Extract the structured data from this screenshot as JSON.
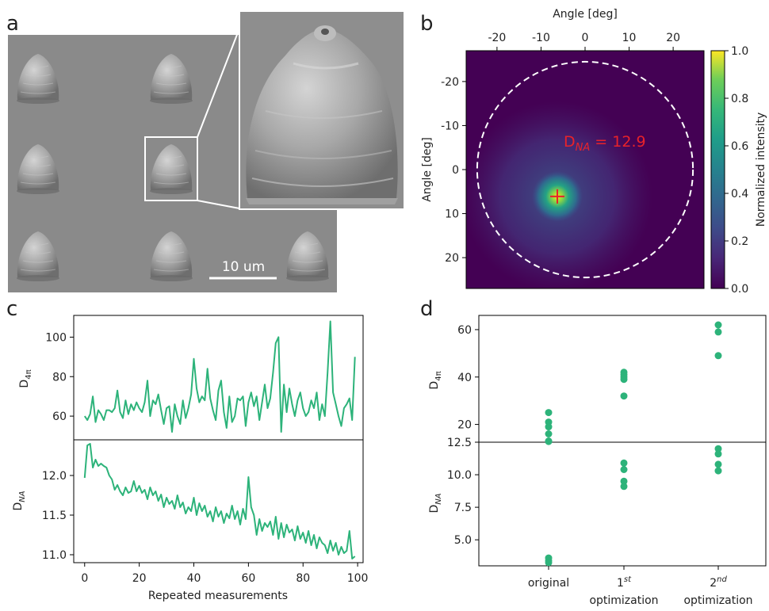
{
  "panels": {
    "a": "a",
    "b": "b",
    "c": "c",
    "d": "d"
  },
  "sem": {
    "scale_label": "10 um"
  },
  "colors": {
    "series": "#2db37a",
    "marker": "#e8222a",
    "annotation": "#e8222a",
    "circle": "#ffffff"
  },
  "chart_data": [
    {
      "id": "b",
      "type": "heatmap",
      "xlabel": "Angle [deg]",
      "ylabel": "Angle [deg]",
      "colorbar_label": "Normalized intensity",
      "xticks": [
        -20,
        -10,
        0,
        10,
        20
      ],
      "yticks": [
        -20,
        -10,
        0,
        10,
        20
      ],
      "ytick_labels": [
        "-20",
        "-10",
        "0",
        "10",
        "20"
      ],
      "xlim": [
        -27,
        27
      ],
      "ylim": [
        -27,
        27
      ],
      "colorbar_ticks": [
        0.0,
        0.2,
        0.4,
        0.6,
        0.8,
        1.0
      ],
      "colorbar_tick_labels": [
        "0.0",
        "0.2",
        "0.4",
        "0.6",
        "0.8",
        "1.0"
      ],
      "colormap": "viridis",
      "peak": [
        -6.3,
        6.1
      ],
      "na_circle_radius": 24.5,
      "annotation": {
        "base": "D",
        "sub": "NA",
        "value": " = 12.9"
      }
    },
    {
      "id": "c",
      "type": "line",
      "xlabel": "Repeated measurements",
      "xticks": [
        0,
        20,
        40,
        60,
        80,
        100
      ],
      "xlim": [
        -4,
        102
      ],
      "series": [
        {
          "ylabel_base": "D",
          "ylabel_sub": "4π",
          "ylim": [
            48,
            111
          ],
          "yticks": [
            60,
            80,
            100
          ],
          "x": [
            0,
            1,
            2,
            3,
            4,
            5,
            6,
            7,
            8,
            9,
            10,
            11,
            12,
            13,
            14,
            15,
            16,
            17,
            18,
            19,
            20,
            21,
            22,
            23,
            24,
            25,
            26,
            27,
            28,
            29,
            30,
            31,
            32,
            33,
            34,
            35,
            36,
            37,
            38,
            39,
            40,
            41,
            42,
            43,
            44,
            45,
            46,
            47,
            48,
            49,
            50,
            51,
            52,
            53,
            54,
            55,
            56,
            57,
            58,
            59,
            60,
            61,
            62,
            63,
            64,
            65,
            66,
            67,
            68,
            69,
            70,
            71,
            72,
            73,
            74,
            75,
            76,
            77,
            78,
            79,
            80,
            81,
            82,
            83,
            84,
            85,
            86,
            87,
            88,
            89,
            90,
            91,
            92,
            93,
            94,
            95,
            96,
            97,
            98,
            99
          ],
          "values": [
            60,
            58,
            61,
            70,
            57,
            63,
            61,
            58,
            63,
            63,
            62,
            64,
            73,
            62,
            59,
            68,
            61,
            66,
            63,
            67,
            64,
            62,
            67,
            78,
            60,
            68,
            66,
            71,
            63,
            56,
            64,
            65,
            52,
            66,
            60,
            56,
            68,
            59,
            64,
            71,
            89,
            74,
            67,
            70,
            68,
            84,
            69,
            63,
            58,
            73,
            78,
            62,
            54,
            70,
            57,
            60,
            69,
            68,
            70,
            55,
            67,
            72,
            65,
            70,
            58,
            67,
            76,
            64,
            69,
            82,
            97,
            100,
            52,
            76,
            62,
            74,
            66,
            60,
            68,
            72,
            64,
            60,
            62,
            68,
            64,
            72,
            58,
            66,
            60,
            82,
            108,
            72,
            66,
            60,
            55,
            64,
            66,
            69,
            58,
            90
          ]
        },
        {
          "ylabel_base": "D",
          "ylabel_sub": "NA",
          "ylim": [
            10.9,
            12.45
          ],
          "yticks": [
            11.0,
            11.5,
            12.0
          ],
          "ytick_labels": [
            "11.0",
            "11.5",
            "12.0"
          ],
          "x": [
            0,
            1,
            2,
            3,
            4,
            5,
            6,
            7,
            8,
            9,
            10,
            11,
            12,
            13,
            14,
            15,
            16,
            17,
            18,
            19,
            20,
            21,
            22,
            23,
            24,
            25,
            26,
            27,
            28,
            29,
            30,
            31,
            32,
            33,
            34,
            35,
            36,
            37,
            38,
            39,
            40,
            41,
            42,
            43,
            44,
            45,
            46,
            47,
            48,
            49,
            50,
            51,
            52,
            53,
            54,
            55,
            56,
            57,
            58,
            59,
            60,
            61,
            62,
            63,
            64,
            65,
            66,
            67,
            68,
            69,
            70,
            71,
            72,
            73,
            74,
            75,
            76,
            77,
            78,
            79,
            80,
            81,
            82,
            83,
            84,
            85,
            86,
            87,
            88,
            89,
            90,
            91,
            92,
            93,
            94,
            95,
            96,
            97,
            98,
            99
          ],
          "values": [
            11.97,
            12.38,
            12.4,
            12.1,
            12.2,
            12.12,
            12.15,
            12.12,
            12.1,
            12.0,
            11.95,
            11.82,
            11.88,
            11.8,
            11.75,
            11.85,
            11.78,
            11.8,
            11.93,
            11.8,
            11.87,
            11.78,
            11.82,
            11.7,
            11.85,
            11.75,
            11.8,
            11.68,
            11.76,
            11.6,
            11.72,
            11.64,
            11.68,
            11.58,
            11.75,
            11.6,
            11.66,
            11.52,
            11.6,
            11.55,
            11.72,
            11.5,
            11.65,
            11.55,
            11.62,
            11.48,
            11.55,
            11.42,
            11.6,
            11.48,
            11.55,
            11.4,
            11.52,
            11.46,
            11.62,
            11.45,
            11.55,
            11.38,
            11.58,
            11.45,
            11.98,
            11.6,
            11.5,
            11.25,
            11.45,
            11.3,
            11.4,
            11.35,
            11.42,
            11.25,
            11.48,
            11.2,
            11.4,
            11.22,
            11.38,
            11.28,
            11.32,
            11.18,
            11.36,
            11.2,
            11.28,
            11.15,
            11.3,
            11.12,
            11.25,
            11.08,
            11.22,
            11.15,
            11.12,
            11.02,
            11.18,
            11.05,
            11.15,
            11.0,
            11.1,
            11.02,
            11.05,
            11.3,
            10.95,
            10.98
          ]
        }
      ]
    },
    {
      "id": "d",
      "type": "scatter",
      "categories": [
        "original",
        "1st optimization",
        "2nd optimization"
      ],
      "category_labels": [
        {
          "line1": "original",
          "line2": ""
        },
        {
          "line1_base": "1",
          "line1_sup": "st",
          "line2": "optimization"
        },
        {
          "line1_base": "2",
          "line1_sup": "nd",
          "line2": "optimization"
        }
      ],
      "top": {
        "ylabel_base": "D",
        "ylabel_sub": "4π",
        "ylim": [
          12.5,
          66
        ],
        "yticks": [
          20,
          40,
          60
        ],
        "points": [
          {
            "cat": 0,
            "values": [
              25,
              21,
              19,
              16,
              13,
              12.8
            ]
          },
          {
            "cat": 1,
            "values": [
              42,
              41,
              40,
              39,
              32
            ]
          },
          {
            "cat": 2,
            "values": [
              62,
              59,
              49
            ]
          }
        ]
      },
      "bottom": {
        "ylabel_base": "D",
        "ylabel_sub": "NA",
        "ylim": [
          3.0,
          12.5
        ],
        "yticks": [
          5.0,
          7.5,
          10.0,
          12.5
        ],
        "ytick_labels": [
          "5.0",
          "7.5",
          "10.0",
          "12.5"
        ],
        "points": [
          {
            "cat": 0,
            "values": [
              3.6,
              3.4,
              3.25
            ]
          },
          {
            "cat": 1,
            "values": [
              10.9,
              10.4,
              9.5,
              9.1
            ]
          },
          {
            "cat": 2,
            "values": [
              12.0,
              11.6,
              10.8,
              10.3
            ]
          }
        ]
      }
    }
  ]
}
